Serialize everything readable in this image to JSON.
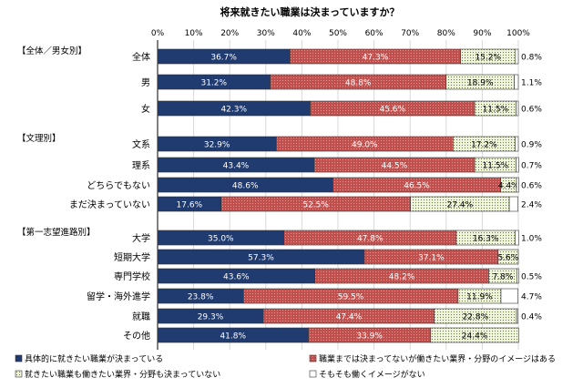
{
  "chart_data": {
    "type": "bar",
    "orientation": "horizontal",
    "stacked": "percent",
    "title": "将来就きたい職業は決まっていますか？",
    "xlim": [
      0,
      100
    ],
    "x_ticks": [
      "0%",
      "10%",
      "20%",
      "30%",
      "40%",
      "50%",
      "60%",
      "70%",
      "80%",
      "90%",
      "100%"
    ],
    "grid": true,
    "legend_position": "bottom",
    "groups": [
      {
        "label": "【全体／男女別】",
        "categories": [
          "全体",
          "男",
          "女"
        ]
      },
      {
        "label": "【文理別】",
        "categories": [
          "文系",
          "理系",
          "どちらでもない",
          "まだ決まっていない"
        ]
      },
      {
        "label": "【第一志望進路別】",
        "categories": [
          "大学",
          "短期大学",
          "専門学校",
          "留学・海外進学",
          "就職",
          "その他"
        ]
      }
    ],
    "categories": [
      "全体",
      "男",
      "女",
      "文系",
      "理系",
      "どちらでもない",
      "まだ決まっていない",
      "大学",
      "短期大学",
      "専門学校",
      "留学・海外進学",
      "就職",
      "その他"
    ],
    "series": [
      {
        "name": "具体的に就きたい職業が決まっている",
        "color": "#1f3b70",
        "values": [
          36.7,
          31.2,
          42.3,
          32.9,
          43.4,
          48.6,
          17.6,
          35.0,
          57.3,
          43.6,
          23.8,
          29.3,
          41.8
        ]
      },
      {
        "name": "職業までは決まってないが働きたい業界・分野のイメージはある",
        "color": "#c0504d",
        "values": [
          47.3,
          48.8,
          45.6,
          49.0,
          44.5,
          46.5,
          52.5,
          47.8,
          37.1,
          48.2,
          59.5,
          47.4,
          33.9
        ]
      },
      {
        "name": "就きたい職業も働きたい業界・分野も決まっていない",
        "color": "#eef3dc",
        "values": [
          15.2,
          18.9,
          11.5,
          17.2,
          11.5,
          4.4,
          27.4,
          16.3,
          5.6,
          7.8,
          11.9,
          22.8,
          24.4
        ]
      },
      {
        "name": "そもそも働くイメージがない",
        "color": "#ffffff",
        "values": [
          0.8,
          1.1,
          0.6,
          0.9,
          0.7,
          0.6,
          2.4,
          1.0,
          0.0,
          0.5,
          4.7,
          0.4,
          0.0
        ]
      }
    ],
    "data_labels": [
      [
        "36.7%",
        "47.3%",
        "15.2%",
        "0.8%"
      ],
      [
        "31.2%",
        "48.8%",
        "18.9%",
        "1.1%"
      ],
      [
        "42.3%",
        "45.6%",
        "11.5%",
        "0.6%"
      ],
      [
        "32.9%",
        "49.0%",
        "17.2%",
        "0.9%"
      ],
      [
        "43.4%",
        "44.5%",
        "11.5%",
        "0.7%"
      ],
      [
        "48.6%",
        "46.5%",
        "4.4%",
        "0.6%"
      ],
      [
        "17.6%",
        "52.5%",
        "27.4%",
        "2.4%"
      ],
      [
        "35.0%",
        "47.8%",
        "16.3%",
        "1.0%"
      ],
      [
        "57.3%",
        "37.1%",
        "5.6%",
        ""
      ],
      [
        "43.6%",
        "48.2%",
        "7.8%",
        "0.5%"
      ],
      [
        "23.8%",
        "59.5%",
        "11.9%",
        "4.7%"
      ],
      [
        "29.3%",
        "47.4%",
        "22.8%",
        "0.4%"
      ],
      [
        "41.8%",
        "33.9%",
        "24.4%",
        ""
      ]
    ]
  }
}
